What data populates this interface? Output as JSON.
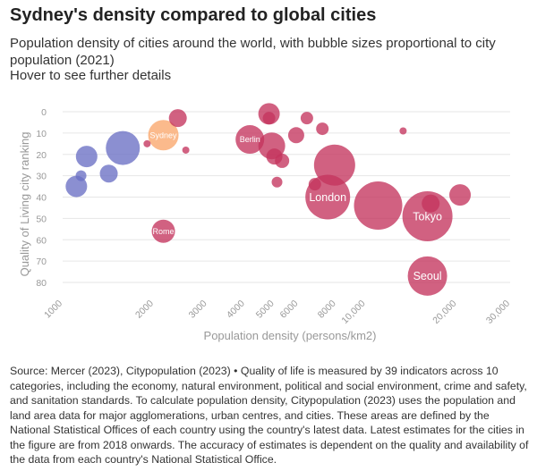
{
  "title": "Sydney's density compared to global cities",
  "subtitle": "Population density of cities around the world, with bubble sizes proportional to city population (2021)",
  "hover_hint": "Hover to see further details",
  "footer": "Source: Mercer (2023), Citypopulation (2023) • Quality of life is measured by 39 indicators across 10 categories, including the economy, natural environment, political and social environment, crime and safety, and sanitation standards. To calculate population density, Citypopulation (2023) uses the population and land area data for major agglomerations, urban centres, and cities. These areas are defined by the National Statistical Offices of each country using the country's latest data. Latest estimates for the cities in the figure are from 2018 onwards. The accuracy of estimates is dependent on the quality and availability of the data from each country's National Statistical Office.",
  "colors": {
    "blue": "#6a6fc4",
    "red": "#c4345e",
    "sydney": "#fbb27f",
    "grid": "#e6e6e6",
    "tick": "#999999"
  },
  "chart_data": {
    "type": "scatter",
    "xlabel": "Population density (persons/km2)",
    "ylabel": "Quality of Living city ranking",
    "x_scale": "log",
    "xlim": [
      1000,
      30000
    ],
    "ylim": [
      0,
      80
    ],
    "y_inverted": true,
    "x_ticks": [
      1000,
      2000,
      3000,
      4000,
      5000,
      6000,
      8000,
      10000,
      20000,
      30000
    ],
    "x_tick_labels": [
      "1000",
      "2000",
      "3000",
      "4000",
      "5000",
      "6000",
      "8000",
      "10,000",
      "20,000",
      "30,000"
    ],
    "y_ticks": [
      0,
      10,
      20,
      30,
      40,
      50,
      60,
      70,
      80
    ],
    "points": [
      {
        "density": 1110,
        "rank": 35,
        "size": 12,
        "group": "blue",
        "label": ""
      },
      {
        "density": 1150,
        "rank": 30,
        "size": 6,
        "group": "blue",
        "label": ""
      },
      {
        "density": 1200,
        "rank": 21,
        "size": 12,
        "group": "blue",
        "label": ""
      },
      {
        "density": 1420,
        "rank": 29,
        "size": 10,
        "group": "blue",
        "label": ""
      },
      {
        "density": 1580,
        "rank": 17,
        "size": 19,
        "group": "blue",
        "label": ""
      },
      {
        "density": 1900,
        "rank": 15,
        "size": 4,
        "group": "red",
        "label": ""
      },
      {
        "density": 2150,
        "rank": 11,
        "size": 17,
        "group": "sydney",
        "label": "Sydney"
      },
      {
        "density": 2150,
        "rank": 56,
        "size": 13,
        "group": "red",
        "label": "Rome"
      },
      {
        "density": 2400,
        "rank": 3,
        "size": 10,
        "group": "red",
        "label": ""
      },
      {
        "density": 2550,
        "rank": 18,
        "size": 4,
        "group": "red",
        "label": ""
      },
      {
        "density": 4150,
        "rank": 13,
        "size": 16,
        "group": "red",
        "label": "Berlin"
      },
      {
        "density": 4800,
        "rank": 1,
        "size": 12,
        "group": "red",
        "label": ""
      },
      {
        "density": 4800,
        "rank": 3,
        "size": 7,
        "group": "red",
        "label": ""
      },
      {
        "density": 4900,
        "rank": 16,
        "size": 15,
        "group": "red",
        "label": ""
      },
      {
        "density": 5000,
        "rank": 21,
        "size": 9,
        "group": "red",
        "label": ""
      },
      {
        "density": 5100,
        "rank": 33,
        "size": 6,
        "group": "red",
        "label": ""
      },
      {
        "density": 5300,
        "rank": 23,
        "size": 8,
        "group": "red",
        "label": ""
      },
      {
        "density": 5900,
        "rank": 11,
        "size": 9,
        "group": "red",
        "label": ""
      },
      {
        "density": 6400,
        "rank": 3,
        "size": 7,
        "group": "red",
        "label": ""
      },
      {
        "density": 6800,
        "rank": 34,
        "size": 7,
        "group": "red",
        "label": ""
      },
      {
        "density": 7200,
        "rank": 8,
        "size": 7,
        "group": "red",
        "label": ""
      },
      {
        "density": 7900,
        "rank": 25,
        "size": 23,
        "group": "red",
        "label": ""
      },
      {
        "density": 7500,
        "rank": 40,
        "size": 25,
        "group": "red",
        "label": "London"
      },
      {
        "density": 11000,
        "rank": 44,
        "size": 27,
        "group": "red",
        "label": ""
      },
      {
        "density": 13300,
        "rank": 9,
        "size": 4,
        "group": "red",
        "label": ""
      },
      {
        "density": 16000,
        "rank": 49,
        "size": 28,
        "group": "red",
        "label": "Tokyo"
      },
      {
        "density": 16400,
        "rank": 43,
        "size": 10,
        "group": "red",
        "label": ""
      },
      {
        "density": 16000,
        "rank": 77,
        "size": 22,
        "group": "red",
        "label": "Seoul"
      },
      {
        "density": 20500,
        "rank": 39,
        "size": 12,
        "group": "red",
        "label": ""
      }
    ]
  }
}
